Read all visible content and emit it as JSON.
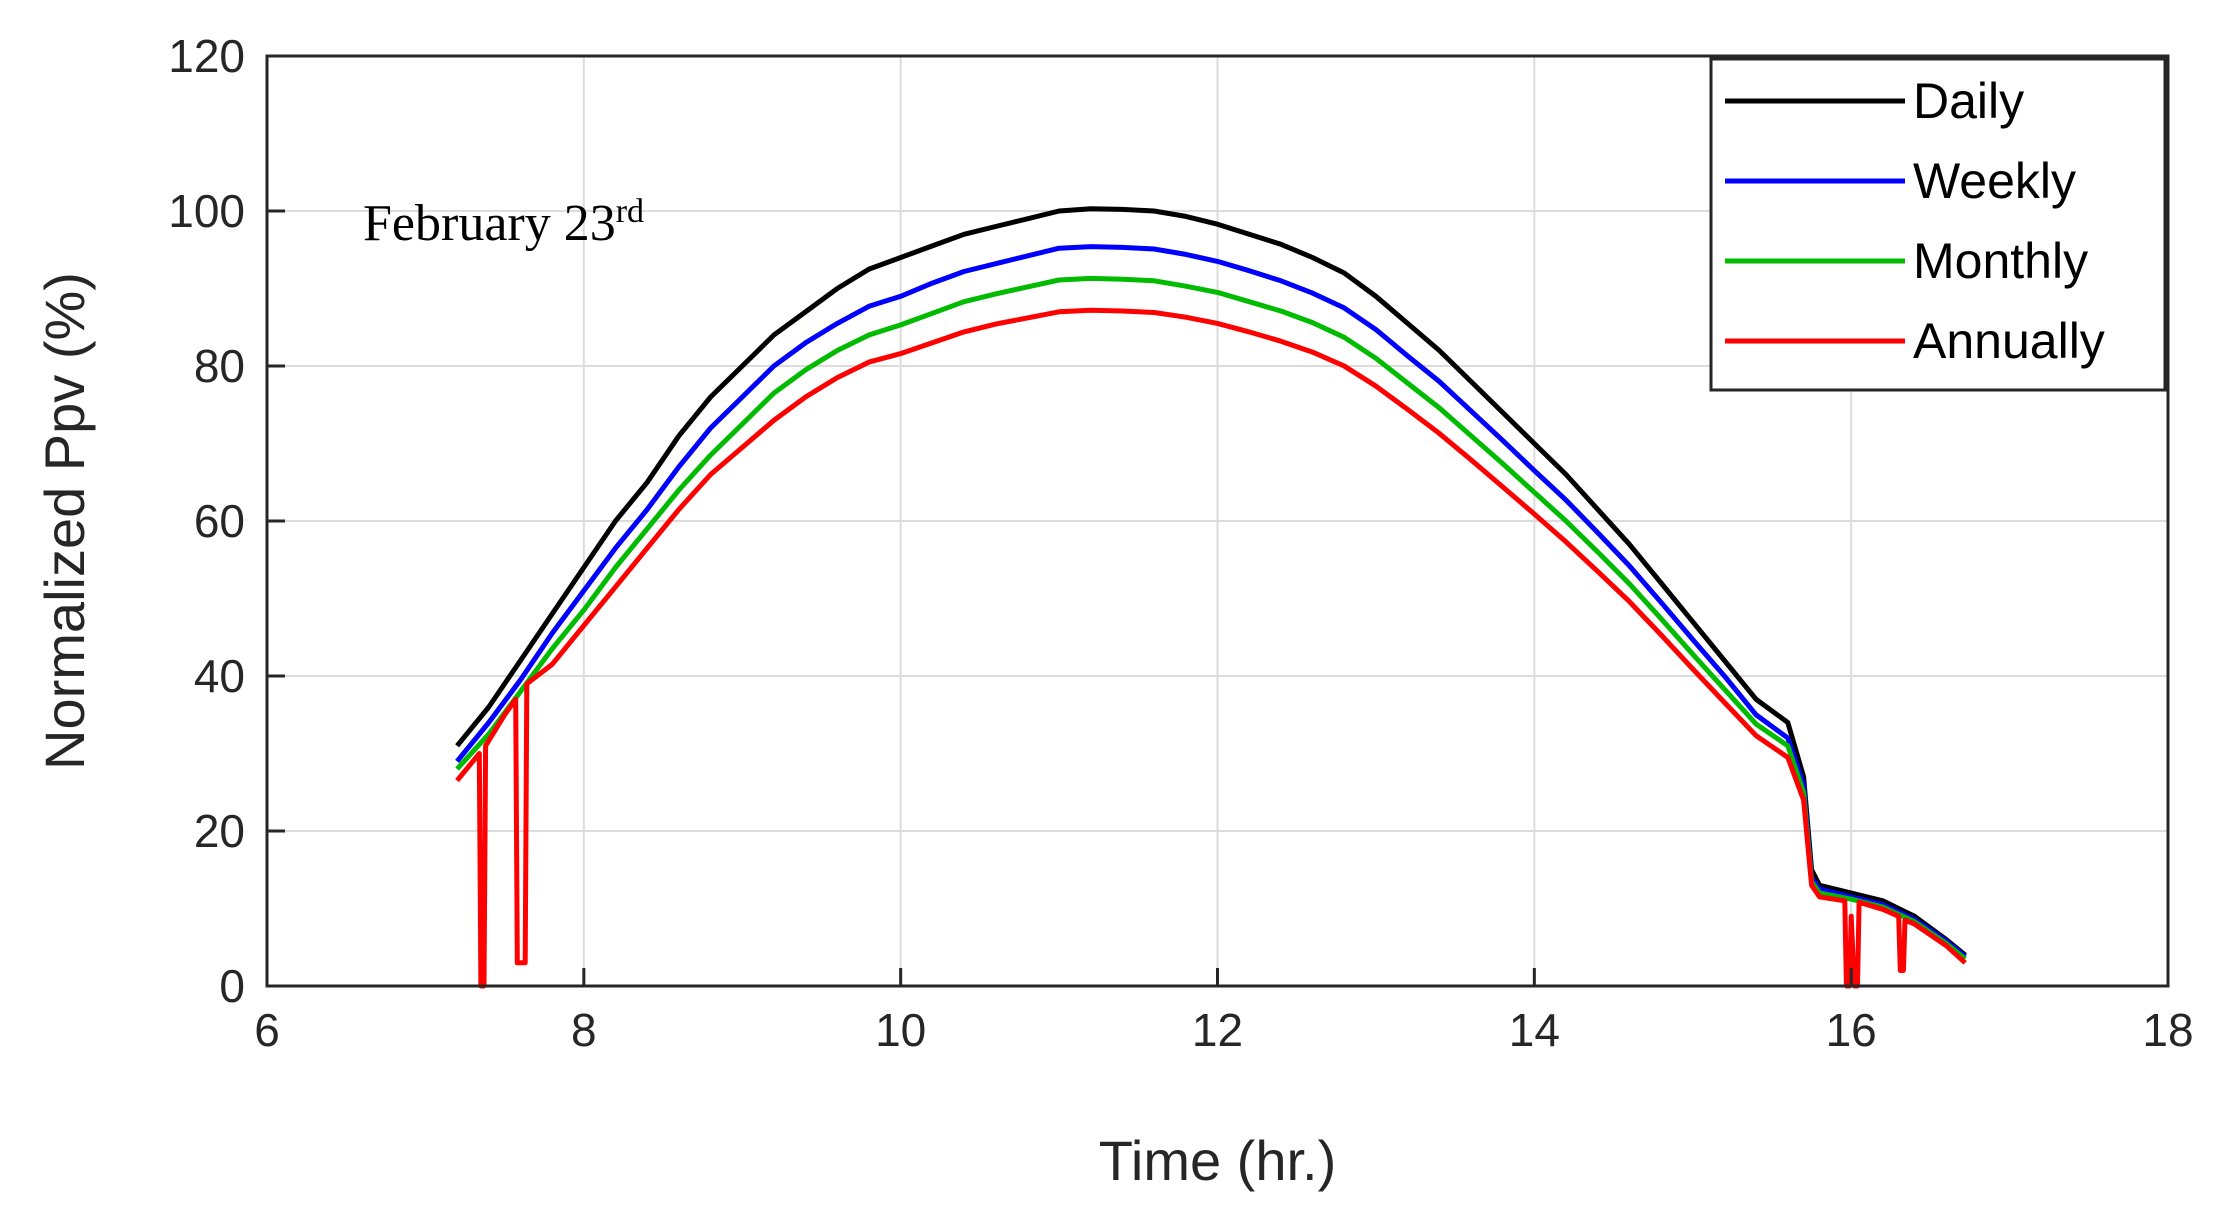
{
  "chart_data": {
    "type": "line",
    "title": "",
    "xlabel": "Time (hr.)",
    "ylabel": "Normalized Ppv (%)",
    "xlim": [
      6,
      18
    ],
    "ylim": [
      0,
      120
    ],
    "xticks": [
      6,
      8,
      10,
      12,
      14,
      16,
      18
    ],
    "yticks": [
      0,
      20,
      40,
      60,
      80,
      100,
      120
    ],
    "grid": true,
    "legend_position": "top-right",
    "annotation": {
      "text": "February 23",
      "superscript": "rd"
    },
    "series": [
      {
        "name": "Daily",
        "color": "#000000",
        "points": [
          [
            7.2,
            31
          ],
          [
            7.4,
            36
          ],
          [
            7.6,
            42
          ],
          [
            7.8,
            48
          ],
          [
            8.0,
            54
          ],
          [
            8.2,
            60
          ],
          [
            8.4,
            65
          ],
          [
            8.6,
            71
          ],
          [
            8.8,
            76
          ],
          [
            9.0,
            80
          ],
          [
            9.2,
            84
          ],
          [
            9.4,
            87
          ],
          [
            9.6,
            90
          ],
          [
            9.8,
            92.5
          ],
          [
            10.0,
            94
          ],
          [
            10.2,
            95.5
          ],
          [
            10.4,
            97
          ],
          [
            10.6,
            98
          ],
          [
            10.8,
            99
          ],
          [
            11.0,
            100
          ],
          [
            11.2,
            100.3
          ],
          [
            11.4,
            100.2
          ],
          [
            11.6,
            100
          ],
          [
            11.8,
            99.3
          ],
          [
            12.0,
            98.3
          ],
          [
            12.2,
            97
          ],
          [
            12.4,
            95.7
          ],
          [
            12.6,
            94
          ],
          [
            12.8,
            92
          ],
          [
            13.0,
            89
          ],
          [
            13.2,
            85.5
          ],
          [
            13.4,
            82
          ],
          [
            13.6,
            78
          ],
          [
            13.8,
            74
          ],
          [
            14.0,
            70
          ],
          [
            14.2,
            66
          ],
          [
            14.4,
            61.5
          ],
          [
            14.6,
            57
          ],
          [
            14.8,
            52
          ],
          [
            15.0,
            47
          ],
          [
            15.2,
            42
          ],
          [
            15.4,
            37
          ],
          [
            15.6,
            34
          ],
          [
            15.7,
            27
          ],
          [
            15.75,
            15
          ],
          [
            15.8,
            13
          ],
          [
            16.0,
            12
          ],
          [
            16.2,
            11
          ],
          [
            16.4,
            9
          ],
          [
            16.6,
            6
          ],
          [
            16.72,
            4
          ]
        ]
      },
      {
        "name": "Weekly",
        "color": "#0000ff",
        "points": [
          [
            7.2,
            29
          ],
          [
            7.4,
            34
          ],
          [
            7.6,
            39.5
          ],
          [
            7.8,
            45.5
          ],
          [
            8.0,
            51
          ],
          [
            8.2,
            56.5
          ],
          [
            8.4,
            61.5
          ],
          [
            8.6,
            67
          ],
          [
            8.8,
            72
          ],
          [
            9.0,
            76
          ],
          [
            9.2,
            80
          ],
          [
            9.4,
            83
          ],
          [
            9.6,
            85.5
          ],
          [
            9.8,
            87.7
          ],
          [
            10.0,
            89
          ],
          [
            10.2,
            90.7
          ],
          [
            10.4,
            92.2
          ],
          [
            10.6,
            93.2
          ],
          [
            10.8,
            94.2
          ],
          [
            11.0,
            95.2
          ],
          [
            11.2,
            95.4
          ],
          [
            11.4,
            95.3
          ],
          [
            11.6,
            95.1
          ],
          [
            11.8,
            94.4
          ],
          [
            12.0,
            93.5
          ],
          [
            12.2,
            92.3
          ],
          [
            12.4,
            91
          ],
          [
            12.6,
            89.4
          ],
          [
            12.8,
            87.5
          ],
          [
            13.0,
            84.7
          ],
          [
            13.2,
            81.3
          ],
          [
            13.4,
            78
          ],
          [
            13.6,
            74.2
          ],
          [
            13.8,
            70.4
          ],
          [
            14.0,
            66.5
          ],
          [
            14.2,
            62.7
          ],
          [
            14.4,
            58.5
          ],
          [
            14.6,
            54.2
          ],
          [
            14.8,
            49.5
          ],
          [
            15.0,
            44.7
          ],
          [
            15.2,
            40
          ],
          [
            15.4,
            35
          ],
          [
            15.6,
            32
          ],
          [
            15.7,
            26
          ],
          [
            15.75,
            14
          ],
          [
            15.8,
            12.5
          ],
          [
            16.0,
            11.5
          ],
          [
            16.2,
            10.5
          ],
          [
            16.4,
            8.6
          ],
          [
            16.6,
            5.8
          ],
          [
            16.72,
            3.8
          ]
        ]
      },
      {
        "name": "Monthly",
        "color": "#00bb00",
        "points": [
          [
            7.2,
            28
          ],
          [
            7.4,
            32.5
          ],
          [
            7.6,
            38
          ],
          [
            7.8,
            43.5
          ],
          [
            8.0,
            48.5
          ],
          [
            8.2,
            54
          ],
          [
            8.4,
            59
          ],
          [
            8.6,
            64
          ],
          [
            8.8,
            68.5
          ],
          [
            9.0,
            72.5
          ],
          [
            9.2,
            76.5
          ],
          [
            9.4,
            79.5
          ],
          [
            9.6,
            82
          ],
          [
            9.8,
            84
          ],
          [
            10.0,
            85.3
          ],
          [
            10.2,
            86.8
          ],
          [
            10.4,
            88.3
          ],
          [
            10.6,
            89.3
          ],
          [
            10.8,
            90.2
          ],
          [
            11.0,
            91.1
          ],
          [
            11.2,
            91.3
          ],
          [
            11.4,
            91.2
          ],
          [
            11.6,
            91
          ],
          [
            11.8,
            90.3
          ],
          [
            12.0,
            89.5
          ],
          [
            12.2,
            88.3
          ],
          [
            12.4,
            87.1
          ],
          [
            12.6,
            85.6
          ],
          [
            12.8,
            83.7
          ],
          [
            13.0,
            81
          ],
          [
            13.2,
            77.8
          ],
          [
            13.4,
            74.6
          ],
          [
            13.6,
            71
          ],
          [
            13.8,
            67.4
          ],
          [
            14.0,
            63.7
          ],
          [
            14.2,
            60
          ],
          [
            14.4,
            56
          ],
          [
            14.6,
            51.9
          ],
          [
            14.8,
            47.4
          ],
          [
            15.0,
            42.8
          ],
          [
            15.2,
            38.3
          ],
          [
            15.4,
            33.8
          ],
          [
            15.6,
            31
          ],
          [
            15.7,
            25
          ],
          [
            15.75,
            13.5
          ],
          [
            15.8,
            12
          ],
          [
            16.0,
            11.2
          ],
          [
            16.2,
            10.2
          ],
          [
            16.4,
            8.3
          ],
          [
            16.6,
            5.5
          ],
          [
            16.72,
            3.5
          ]
        ]
      },
      {
        "name": "Annually",
        "color": "#ff0000",
        "points": [
          [
            7.2,
            26.5
          ],
          [
            7.3,
            29
          ],
          [
            7.34,
            30
          ],
          [
            7.35,
            0
          ],
          [
            7.37,
            0
          ],
          [
            7.38,
            31
          ],
          [
            7.5,
            35
          ],
          [
            7.57,
            37
          ],
          [
            7.58,
            3
          ],
          [
            7.6,
            3
          ],
          [
            7.63,
            3
          ],
          [
            7.64,
            39
          ],
          [
            7.8,
            41.5
          ],
          [
            8.0,
            46.5
          ],
          [
            8.2,
            51.5
          ],
          [
            8.4,
            56.5
          ],
          [
            8.6,
            61.5
          ],
          [
            8.8,
            66
          ],
          [
            9.0,
            69.5
          ],
          [
            9.2,
            73
          ],
          [
            9.4,
            76
          ],
          [
            9.6,
            78.5
          ],
          [
            9.8,
            80.5
          ],
          [
            10.0,
            81.6
          ],
          [
            10.2,
            83
          ],
          [
            10.4,
            84.4
          ],
          [
            10.6,
            85.4
          ],
          [
            10.8,
            86.2
          ],
          [
            11.0,
            87
          ],
          [
            11.2,
            87.2
          ],
          [
            11.4,
            87.1
          ],
          [
            11.6,
            86.9
          ],
          [
            11.8,
            86.3
          ],
          [
            12.0,
            85.5
          ],
          [
            12.2,
            84.4
          ],
          [
            12.4,
            83.2
          ],
          [
            12.6,
            81.8
          ],
          [
            12.8,
            80
          ],
          [
            13.0,
            77.4
          ],
          [
            13.2,
            74.4
          ],
          [
            13.4,
            71.3
          ],
          [
            13.6,
            67.9
          ],
          [
            13.8,
            64.4
          ],
          [
            14.0,
            60.9
          ],
          [
            14.2,
            57.3
          ],
          [
            14.4,
            53.5
          ],
          [
            14.6,
            49.6
          ],
          [
            14.8,
            45.3
          ],
          [
            15.0,
            40.9
          ],
          [
            15.2,
            36.6
          ],
          [
            15.4,
            32.3
          ],
          [
            15.6,
            29.5
          ],
          [
            15.7,
            24
          ],
          [
            15.75,
            13
          ],
          [
            15.8,
            11.5
          ],
          [
            15.96,
            11
          ],
          [
            15.97,
            0
          ],
          [
            15.99,
            0
          ],
          [
            16.0,
            9
          ],
          [
            16.02,
            0
          ],
          [
            16.04,
            0
          ],
          [
            16.05,
            10.8
          ],
          [
            16.2,
            9.9
          ],
          [
            16.3,
            9
          ],
          [
            16.31,
            2
          ],
          [
            16.33,
            2
          ],
          [
            16.34,
            8.5
          ],
          [
            16.4,
            8
          ],
          [
            16.6,
            5.2
          ],
          [
            16.72,
            3
          ]
        ]
      }
    ]
  }
}
